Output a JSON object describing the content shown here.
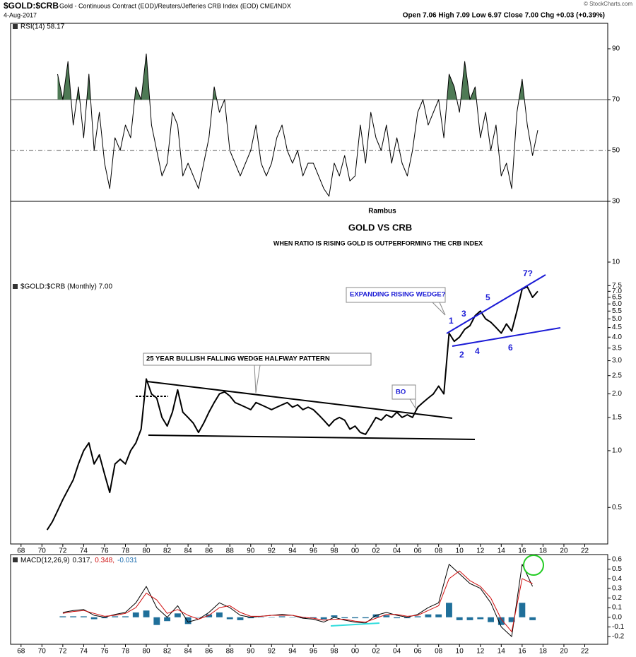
{
  "header": {
    "symbol": "$GOLD:$CRB",
    "description": "Gold - Continuous Contract (EOD)/Reuters/Jefferies CRB Index (EOD) CME/INDX",
    "date": "4-Aug-2017",
    "quote": "Open 7.06  High 7.09  Low 6.97  Close 7.00  Chg +0.03 (+0.39%)",
    "copyright": "© StockCharts.com"
  },
  "chart_data": [
    {
      "type": "line",
      "xlim": [
        1967,
        2024.2
      ],
      "ylim": [
        30,
        100
      ],
      "yticks": [
        30,
        50,
        70,
        90
      ],
      "hlines": [
        {
          "value": 70,
          "dash": false
        },
        {
          "value": 50,
          "dash": true
        },
        {
          "value": 30,
          "dash": false
        }
      ],
      "fill_above": 70,
      "fill_color": "#4e7a55",
      "x": [
        1971.5,
        1972,
        1972.5,
        1973,
        1973.5,
        1974,
        1974.5,
        1975,
        1975.5,
        1976,
        1976.5,
        1977,
        1977.5,
        1978,
        1978.5,
        1979,
        1979.5,
        1980,
        1980.5,
        1981,
        1981.5,
        1982,
        1982.5,
        1983,
        1983.5,
        1984,
        1984.5,
        1985,
        1985.5,
        1986,
        1986.5,
        1987,
        1987.5,
        1988,
        1988.5,
        1989,
        1989.5,
        1990,
        1990.5,
        1991,
        1991.5,
        1992,
        1992.5,
        1993,
        1993.5,
        1994,
        1994.5,
        1995,
        1995.5,
        1996,
        1996.5,
        1997,
        1997.5,
        1998,
        1998.5,
        1999,
        1999.5,
        2000,
        2000.5,
        2001,
        2001.5,
        2002,
        2002.5,
        2003,
        2003.5,
        2004,
        2004.5,
        2005,
        2005.5,
        2006,
        2006.5,
        2007,
        2007.5,
        2008,
        2008.5,
        2009,
        2009.5,
        2010,
        2010.5,
        2011,
        2011.5,
        2012,
        2012.5,
        2013,
        2013.5,
        2014,
        2014.5,
        2015,
        2015.5,
        2016,
        2016.5,
        2017,
        2017.5
      ],
      "series": [
        {
          "name": "RSI(14) 58.17",
          "color": "#000000",
          "style": "line",
          "values": [
            80,
            70,
            85,
            60,
            75,
            55,
            80,
            50,
            65,
            45,
            35,
            55,
            50,
            60,
            55,
            75,
            70,
            88,
            60,
            50,
            40,
            45,
            65,
            60,
            40,
            45,
            40,
            35,
            45,
            55,
            75,
            65,
            70,
            50,
            45,
            40,
            45,
            50,
            60,
            45,
            40,
            45,
            55,
            60,
            50,
            45,
            50,
            40,
            45,
            45,
            40,
            35,
            32,
            45,
            40,
            48,
            38,
            40,
            60,
            45,
            65,
            55,
            50,
            60,
            45,
            55,
            45,
            40,
            50,
            65,
            70,
            60,
            65,
            70,
            55,
            80,
            75,
            65,
            85,
            70,
            75,
            55,
            65,
            50,
            60,
            40,
            45,
            35,
            65,
            78,
            60,
            48,
            58
          ]
        }
      ]
    },
    {
      "type": "line",
      "log_scale": true,
      "xlim": [
        1967,
        2024.2
      ],
      "ylim": [
        0.32,
        21
      ],
      "yticks": [
        0.5,
        {
          "value": 1,
          "label": "1.0"
        },
        1.5,
        {
          "value": 2,
          "label": "2.0"
        },
        2.5,
        {
          "value": 3,
          "label": "3.0"
        },
        3.5,
        {
          "value": 4,
          "label": "4.0"
        },
        4.5,
        {
          "value": 5,
          "label": "5.0"
        },
        5.5,
        {
          "value": 6,
          "label": "6.0"
        },
        6.5,
        {
          "value": 7,
          "label": "7.0"
        },
        7.5,
        10
      ],
      "xticks": [
        {
          "value": 1968,
          "label": "68"
        },
        {
          "value": 1970,
          "label": "70"
        },
        {
          "value": 1972,
          "label": "72"
        },
        {
          "value": 1974,
          "label": "74"
        },
        {
          "value": 1976,
          "label": "76"
        },
        {
          "value": 1978,
          "label": "78"
        },
        {
          "value": 1980,
          "label": "80"
        },
        {
          "value": 1982,
          "label": "82"
        },
        {
          "value": 1984,
          "label": "84"
        },
        {
          "value": 1986,
          "label": "86"
        },
        {
          "value": 1988,
          "label": "88"
        },
        {
          "value": 1990,
          "label": "90"
        },
        {
          "value": 1992,
          "label": "92"
        },
        {
          "value": 1994,
          "label": "94"
        },
        {
          "value": 1996,
          "label": "96"
        },
        {
          "value": 1998,
          "label": "98"
        },
        {
          "value": 2000,
          "label": "00"
        },
        {
          "value": 2002,
          "label": "02"
        },
        {
          "value": 2004,
          "label": "04"
        },
        {
          "value": 2006,
          "label": "06"
        },
        {
          "value": 2008,
          "label": "08"
        },
        {
          "value": 2010,
          "label": "10"
        },
        {
          "value": 2012,
          "label": "12"
        },
        {
          "value": 2014,
          "label": "14"
        },
        {
          "value": 2016,
          "label": "16"
        },
        {
          "value": 2018,
          "label": "18"
        },
        {
          "value": 2020,
          "label": "20"
        },
        {
          "value": 2022,
          "label": "22"
        }
      ],
      "x": [
        1970.5,
        1971,
        1971.5,
        1972,
        1972.5,
        1973,
        1973.5,
        1974,
        1974.5,
        1975,
        1975.5,
        1976,
        1976.5,
        1977,
        1977.5,
        1978,
        1978.5,
        1979,
        1979.5,
        1980,
        1980.5,
        1981,
        1981.5,
        1982,
        1982.5,
        1983,
        1983.5,
        1984,
        1984.5,
        1985,
        1985.5,
        1986,
        1986.5,
        1987,
        1987.5,
        1988,
        1988.5,
        1989,
        1989.5,
        1990,
        1990.5,
        1991,
        1991.5,
        1992,
        1992.5,
        1993,
        1993.5,
        1994,
        1994.5,
        1995,
        1995.5,
        1996,
        1996.5,
        1997,
        1997.5,
        1998,
        1998.5,
        1999,
        1999.5,
        2000,
        2000.5,
        2001,
        2001.5,
        2002,
        2002.5,
        2003,
        2003.5,
        2004,
        2004.5,
        2005,
        2005.5,
        2006,
        2006.5,
        2007,
        2007.5,
        2008,
        2008.5,
        2009,
        2009.5,
        2010,
        2010.5,
        2011,
        2011.5,
        2012,
        2012.5,
        2013,
        2013.5,
        2014,
        2014.5,
        2015,
        2015.5,
        2016,
        2016.5,
        2017,
        2017.5
      ],
      "series": [
        {
          "name": "$GOLD:$CRB (Monthly) 7.00",
          "color": "#000000",
          "style": "line",
          "values": [
            0.38,
            0.42,
            0.48,
            0.55,
            0.62,
            0.7,
            0.85,
            1.0,
            1.1,
            0.85,
            0.95,
            0.75,
            0.6,
            0.85,
            0.9,
            0.85,
            1.0,
            1.1,
            1.3,
            2.4,
            2.0,
            1.9,
            1.5,
            1.35,
            1.6,
            2.1,
            1.6,
            1.5,
            1.4,
            1.25,
            1.4,
            1.6,
            1.8,
            2.0,
            2.05,
            1.95,
            1.8,
            1.75,
            1.7,
            1.65,
            1.8,
            1.75,
            1.7,
            1.65,
            1.7,
            1.75,
            1.8,
            1.7,
            1.75,
            1.65,
            1.7,
            1.65,
            1.55,
            1.45,
            1.35,
            1.45,
            1.5,
            1.45,
            1.3,
            1.35,
            1.25,
            1.22,
            1.35,
            1.5,
            1.45,
            1.55,
            1.5,
            1.6,
            1.5,
            1.55,
            1.5,
            1.7,
            1.8,
            1.9,
            2.0,
            2.2,
            2.0,
            4.2,
            3.8,
            4.0,
            4.4,
            4.6,
            5.2,
            5.5,
            5.0,
            4.8,
            4.5,
            4.2,
            4.7,
            4.3,
            5.5,
            7.2,
            7.4,
            6.5,
            7.0
          ]
        }
      ],
      "annotations": [
        "Rambus",
        "GOLD VS CRB",
        "WHEN RATIO IS RISING GOLD IS OUTPERFORMING THE CRB INDEX",
        "25 YEAR  BULLISH FALLING WEDGE HALFWAY PATTERN",
        "BO",
        "EXPANDING RISING WEDGE?",
        "1",
        "2",
        "3",
        "4",
        "5",
        "6",
        "7?"
      ]
    },
    {
      "type": "line",
      "xlim": [
        1967,
        2024.2
      ],
      "ylim": [
        -0.28,
        0.65
      ],
      "yticks": [
        -0.2,
        -0.1,
        {
          "value": 0,
          "label": "0.0"
        },
        0.1,
        0.2,
        0.3,
        0.4,
        0.5,
        0.6
      ],
      "xticks": [
        {
          "value": 1968,
          "label": "68"
        },
        {
          "value": 1970,
          "label": "70"
        },
        {
          "value": 1972,
          "label": "72"
        },
        {
          "value": 1974,
          "label": "74"
        },
        {
          "value": 1976,
          "label": "76"
        },
        {
          "value": 1978,
          "label": "78"
        },
        {
          "value": 1980,
          "label": "80"
        },
        {
          "value": 1982,
          "label": "82"
        },
        {
          "value": 1984,
          "label": "84"
        },
        {
          "value": 1986,
          "label": "86"
        },
        {
          "value": 1988,
          "label": "88"
        },
        {
          "value": 1990,
          "label": "90"
        },
        {
          "value": 1992,
          "label": "92"
        },
        {
          "value": 1994,
          "label": "94"
        },
        {
          "value": 1996,
          "label": "96"
        },
        {
          "value": 1998,
          "label": "98"
        },
        {
          "value": 2000,
          "label": "00"
        },
        {
          "value": 2002,
          "label": "02"
        },
        {
          "value": 2004,
          "label": "04"
        },
        {
          "value": 2006,
          "label": "06"
        },
        {
          "value": 2008,
          "label": "08"
        },
        {
          "value": 2010,
          "label": "10"
        },
        {
          "value": 2012,
          "label": "12"
        },
        {
          "value": 2014,
          "label": "14"
        },
        {
          "value": 2016,
          "label": "16"
        },
        {
          "value": 2018,
          "label": "18"
        },
        {
          "value": 2020,
          "label": "20"
        },
        {
          "value": 2022,
          "label": "22"
        }
      ],
      "legend": [
        "MACD(12,26,9)",
        "0.317,",
        "0.348,",
        "-0.031"
      ],
      "legend_colors": [
        "#000000",
        "#000000",
        "#d01010",
        "#1f6fb0"
      ],
      "x": [
        1972,
        1973,
        1974,
        1975,
        1976,
        1977,
        1978,
        1979,
        1980,
        1981,
        1982,
        1983,
        1984,
        1985,
        1986,
        1987,
        1988,
        1989,
        1990,
        1991,
        1992,
        1993,
        1994,
        1995,
        1996,
        1997,
        1998,
        1999,
        2000,
        2001,
        2002,
        2003,
        2004,
        2005,
        2006,
        2007,
        2008,
        2009,
        2010,
        2011,
        2012,
        2013,
        2014,
        2015,
        2016,
        2017
      ],
      "series": [
        {
          "color": "#1f6f9a",
          "style": "bar",
          "values": [
            0.01,
            0.01,
            0.01,
            -0.02,
            -0.01,
            0.01,
            0.01,
            0.05,
            0.07,
            -0.08,
            -0.04,
            0.04,
            -0.07,
            0,
            0.03,
            0.05,
            -0.02,
            -0.03,
            -0.01,
            0,
            0,
            0.01,
            0,
            -0.01,
            -0.01,
            -0.02,
            0.02,
            -0.01,
            -0.01,
            -0.01,
            0.03,
            0.02,
            -0.01,
            -0.01,
            0.01,
            0.03,
            0.03,
            0.15,
            -0.03,
            -0.03,
            -0.02,
            -0.05,
            -0.08,
            -0.05,
            0.15,
            -0.03
          ]
        },
        {
          "color": "#000000",
          "style": "line",
          "values": [
            0.05,
            0.07,
            0.08,
            0.02,
            0.0,
            0.03,
            0.05,
            0.15,
            0.32,
            0.1,
            0.0,
            0.12,
            -0.05,
            -0.02,
            0.05,
            0.15,
            0.1,
            0.02,
            0.0,
            0.01,
            0.02,
            0.03,
            0.02,
            -0.01,
            -0.02,
            -0.05,
            0.0,
            -0.03,
            -0.05,
            -0.06,
            0.02,
            0.05,
            0.02,
            0.0,
            0.03,
            0.1,
            0.15,
            0.55,
            0.45,
            0.35,
            0.3,
            0.15,
            -0.1,
            -0.2,
            0.55,
            0.32
          ]
        },
        {
          "color": "#d01010",
          "style": "line",
          "values": [
            0.04,
            0.06,
            0.07,
            0.04,
            0.01,
            0.02,
            0.04,
            0.1,
            0.25,
            0.18,
            0.04,
            0.08,
            0.02,
            -0.02,
            0.02,
            0.1,
            0.12,
            0.05,
            0.01,
            0.01,
            0.02,
            0.02,
            0.02,
            0.0,
            -0.01,
            -0.03,
            -0.02,
            -0.02,
            -0.04,
            -0.05,
            -0.01,
            0.03,
            0.03,
            0.01,
            0.02,
            0.07,
            0.12,
            0.4,
            0.48,
            0.38,
            0.32,
            0.2,
            -0.02,
            -0.15,
            0.4,
            0.35
          ]
        }
      ]
    }
  ]
}
